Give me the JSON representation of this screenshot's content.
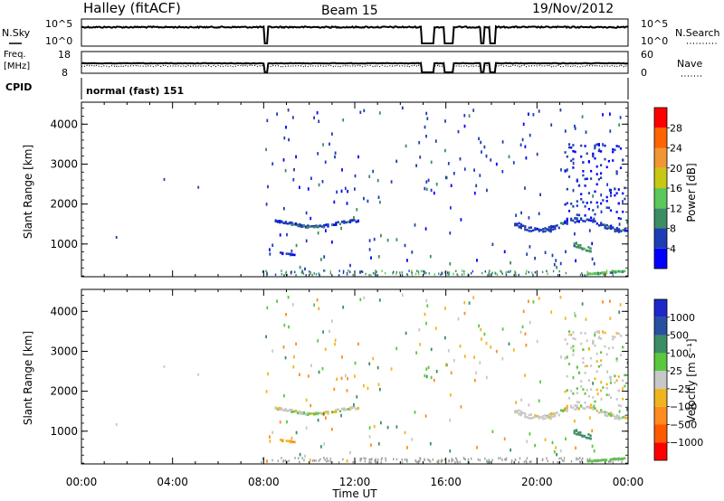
{
  "header": {
    "station": "Halley (fitACF)",
    "beam": "Beam 15",
    "date": "19/Nov/2012"
  },
  "small_panels": {
    "nsky_label": "N.Sky",
    "nsky_ticks": [
      "10^5",
      "10^0"
    ],
    "nsearch_label": "N.Search",
    "nsearch_ticks": [
      "10^5",
      "10^0"
    ],
    "freq_label": "Freq.",
    "freq_unit": "[MHz]",
    "freq_ticks": [
      "18",
      "8"
    ],
    "nave_label": "Nave",
    "nave_ticks": [
      "60",
      "0"
    ],
    "cpid_label": "CPID",
    "cpid_value": "normal (fast) 151"
  },
  "colors": {
    "power_scale": [
      "#0000ff",
      "#1e3cb4",
      "#3c8c64",
      "#5ac85a",
      "#c8c814",
      "#f09632",
      "#ff6400",
      "#ff0000"
    ],
    "velocity_scale": [
      "#ff0000",
      "#ff5a00",
      "#ff8c1e",
      "#f0b41e",
      "#c8c8c8",
      "#5ac83c",
      "#3c8c64",
      "#2850a0",
      "#1e28c8"
    ]
  },
  "chart_data": [
    {
      "type": "heatmap",
      "title": "Power",
      "ylabel": "Slant Range [km]",
      "xlabel": "",
      "x_ticks": [
        "00:00",
        "04:00",
        "08:00",
        "12:00",
        "16:00",
        "20:00",
        "00:00"
      ],
      "xlim_hours": [
        0,
        24
      ],
      "y_ticks": [
        "1000",
        "2000",
        "3000",
        "4000"
      ],
      "ylim": [
        180,
        4550
      ],
      "colorbar": {
        "label": "Power [dB]",
        "ticks": [
          "4",
          "8",
          "12",
          "16",
          "20",
          "24",
          "28"
        ],
        "range": [
          0,
          32
        ]
      },
      "features": [
        {
          "hours": [
            8.4,
            12.2
          ],
          "range_km": [
            1380,
            1620
          ],
          "value": 6
        },
        {
          "hours": [
            8.7,
            9.4
          ],
          "range_km": [
            700,
            850
          ],
          "value": 4
        },
        {
          "hours": [
            19.0,
            24.0
          ],
          "range_km": [
            1250,
            1700
          ],
          "value": 6
        },
        {
          "hours": [
            21.2,
            23.9
          ],
          "range_km": [
            1600,
            3500
          ],
          "value": 4
        },
        {
          "hours": [
            21.6,
            22.4
          ],
          "range_km": [
            750,
            1200
          ],
          "value": 10
        },
        {
          "hours": [
            22.2,
            23.9
          ],
          "range_km": [
            230,
            330
          ],
          "value": 14
        }
      ]
    },
    {
      "type": "heatmap",
      "title": "Velocity",
      "ylabel": "Slant Range [km]",
      "xlabel": "Time UT",
      "x_ticks": [
        "00:00",
        "04:00",
        "08:00",
        "12:00",
        "16:00",
        "20:00",
        "00:00"
      ],
      "xlim_hours": [
        0,
        24
      ],
      "y_ticks": [
        "1000",
        "2000",
        "3000",
        "4000"
      ],
      "ylim": [
        180,
        4550
      ],
      "colorbar": {
        "label": "Velocity [m s⁻¹]",
        "ticks": [
          "1000",
          "500",
          "100",
          "25",
          "−25",
          "−100",
          "−500",
          "−1000"
        ]
      },
      "features": [
        {
          "hours": [
            8.4,
            12.2
          ],
          "range_km": [
            1380,
            1620
          ],
          "value": 0
        },
        {
          "hours": [
            8.7,
            9.4
          ],
          "range_km": [
            700,
            850
          ],
          "value": -120
        },
        {
          "hours": [
            19.0,
            24.0
          ],
          "range_km": [
            1250,
            1700
          ],
          "value": 0
        },
        {
          "hours": [
            21.2,
            23.9
          ],
          "range_km": [
            1600,
            3500
          ],
          "value": 0
        },
        {
          "hours": [
            21.6,
            22.4
          ],
          "range_km": [
            750,
            1200
          ],
          "value": 150
        },
        {
          "hours": [
            22.2,
            23.9
          ],
          "range_km": [
            230,
            330
          ],
          "value": 60
        }
      ]
    }
  ]
}
